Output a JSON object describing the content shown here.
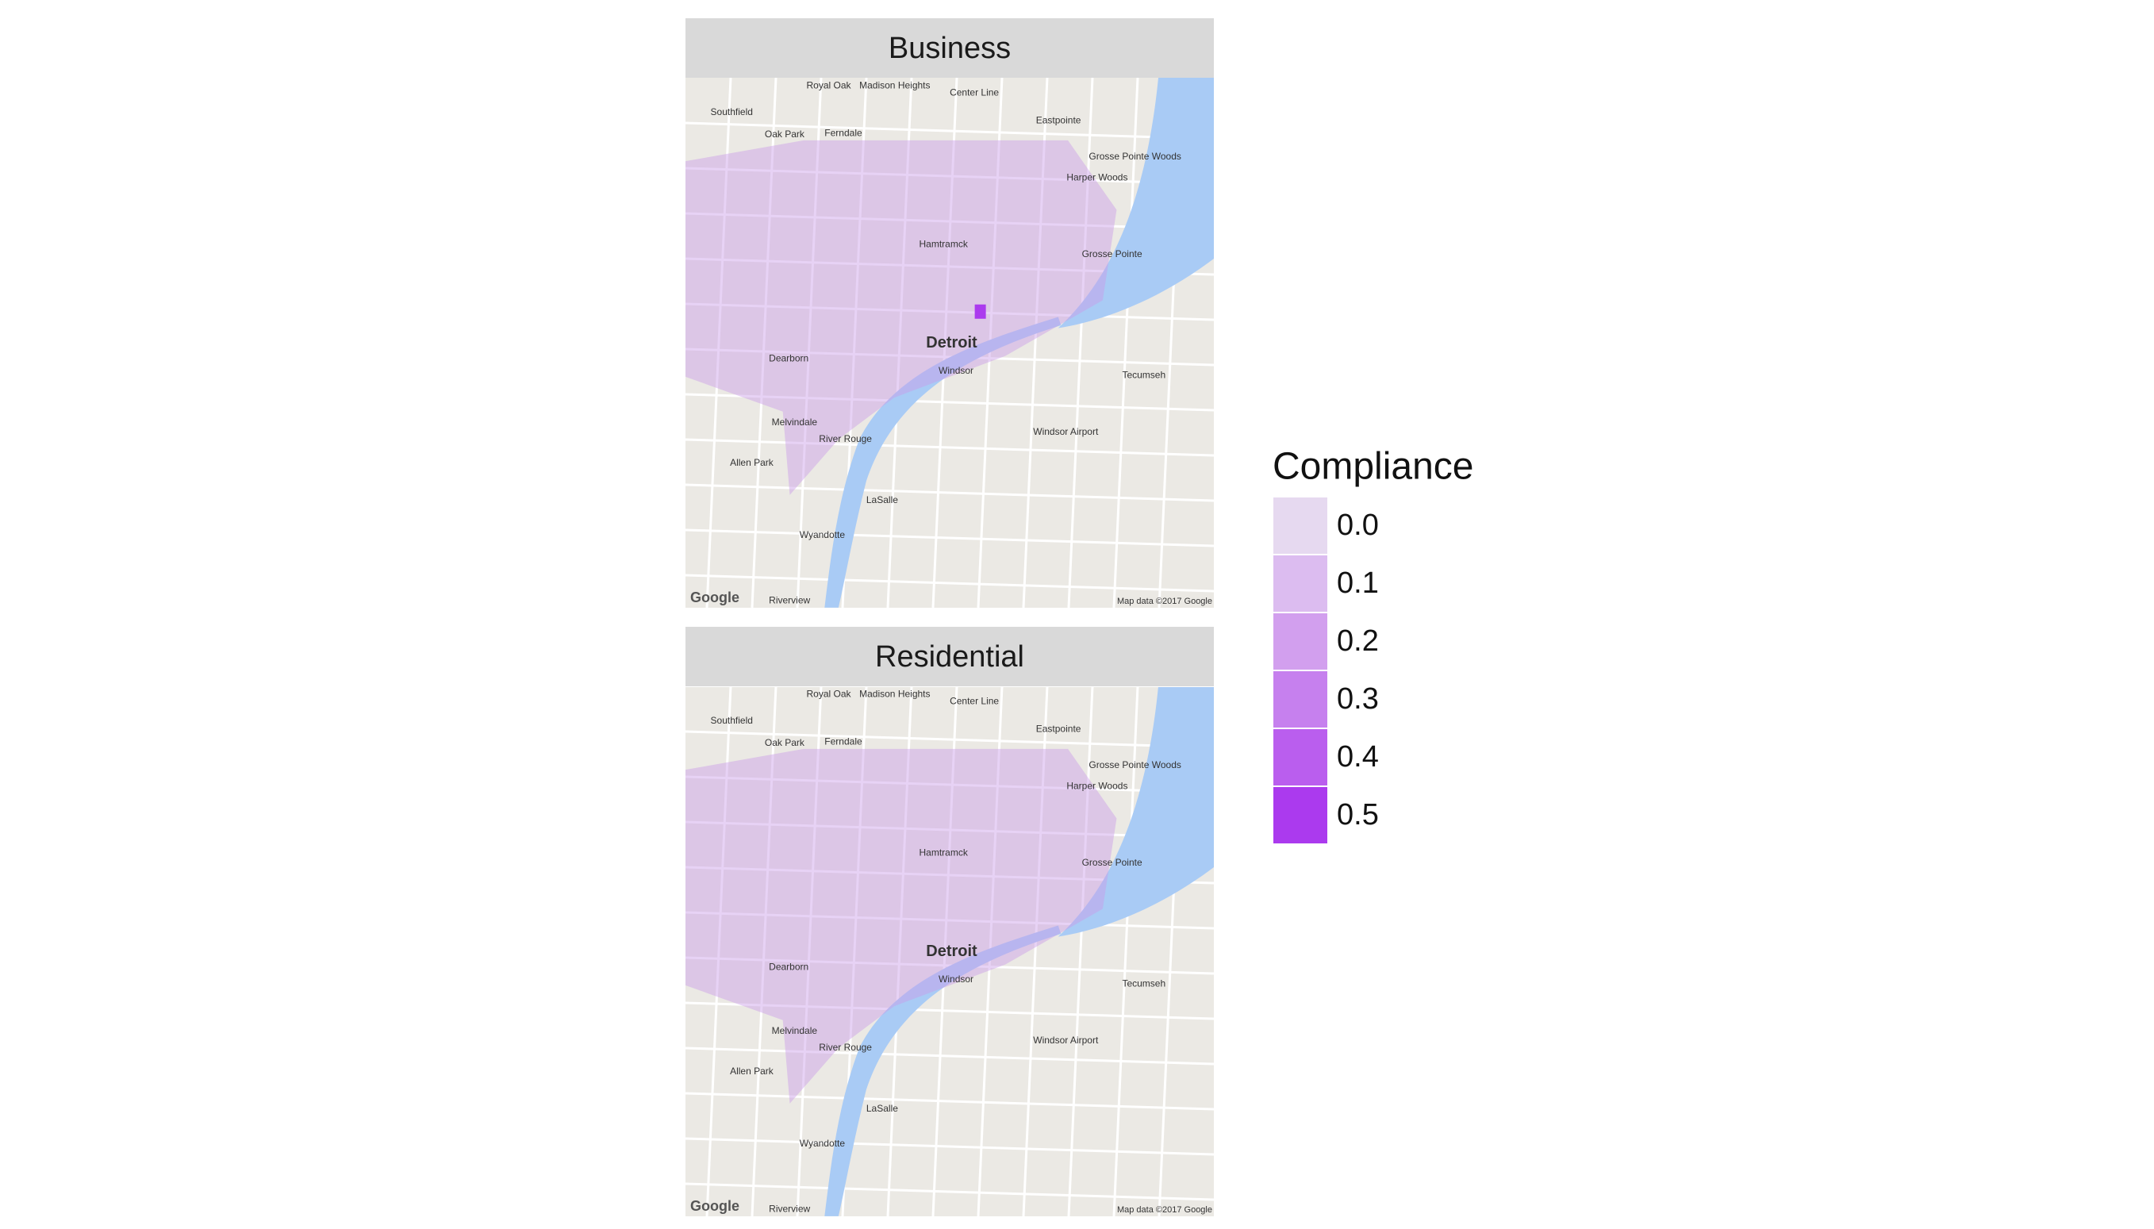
{
  "panels": [
    {
      "title": "Business"
    },
    {
      "title": "Residential"
    }
  ],
  "map_labels": [
    "Southfield",
    "Royal Oak",
    "Madison Heights",
    "Center Line",
    "Eastpointe",
    "Oak Park",
    "Ferndale",
    "Grosse Pointe Woods",
    "Harper Woods",
    "Hamtramck",
    "Grosse Pointe",
    "Detroit",
    "Dearborn",
    "Windsor",
    "Tecumseh",
    "Melvindale",
    "River Rouge",
    "Windsor Airport",
    "Allen Park",
    "LaSalle",
    "Wyandotte",
    "Riverview"
  ],
  "attribution": "Map data ©2017 Google",
  "logo": "Google",
  "legend": {
    "title": "Compliance",
    "items": [
      {
        "label": "0.0",
        "color": "#e6d9f0"
      },
      {
        "label": "0.1",
        "color": "#dcbcf0"
      },
      {
        "label": "0.2",
        "color": "#d29fee"
      },
      {
        "label": "0.3",
        "color": "#c680ee"
      },
      {
        "label": "0.4",
        "color": "#ba5eee"
      },
      {
        "label": "0.5",
        "color": "#ab3aee"
      }
    ]
  }
}
